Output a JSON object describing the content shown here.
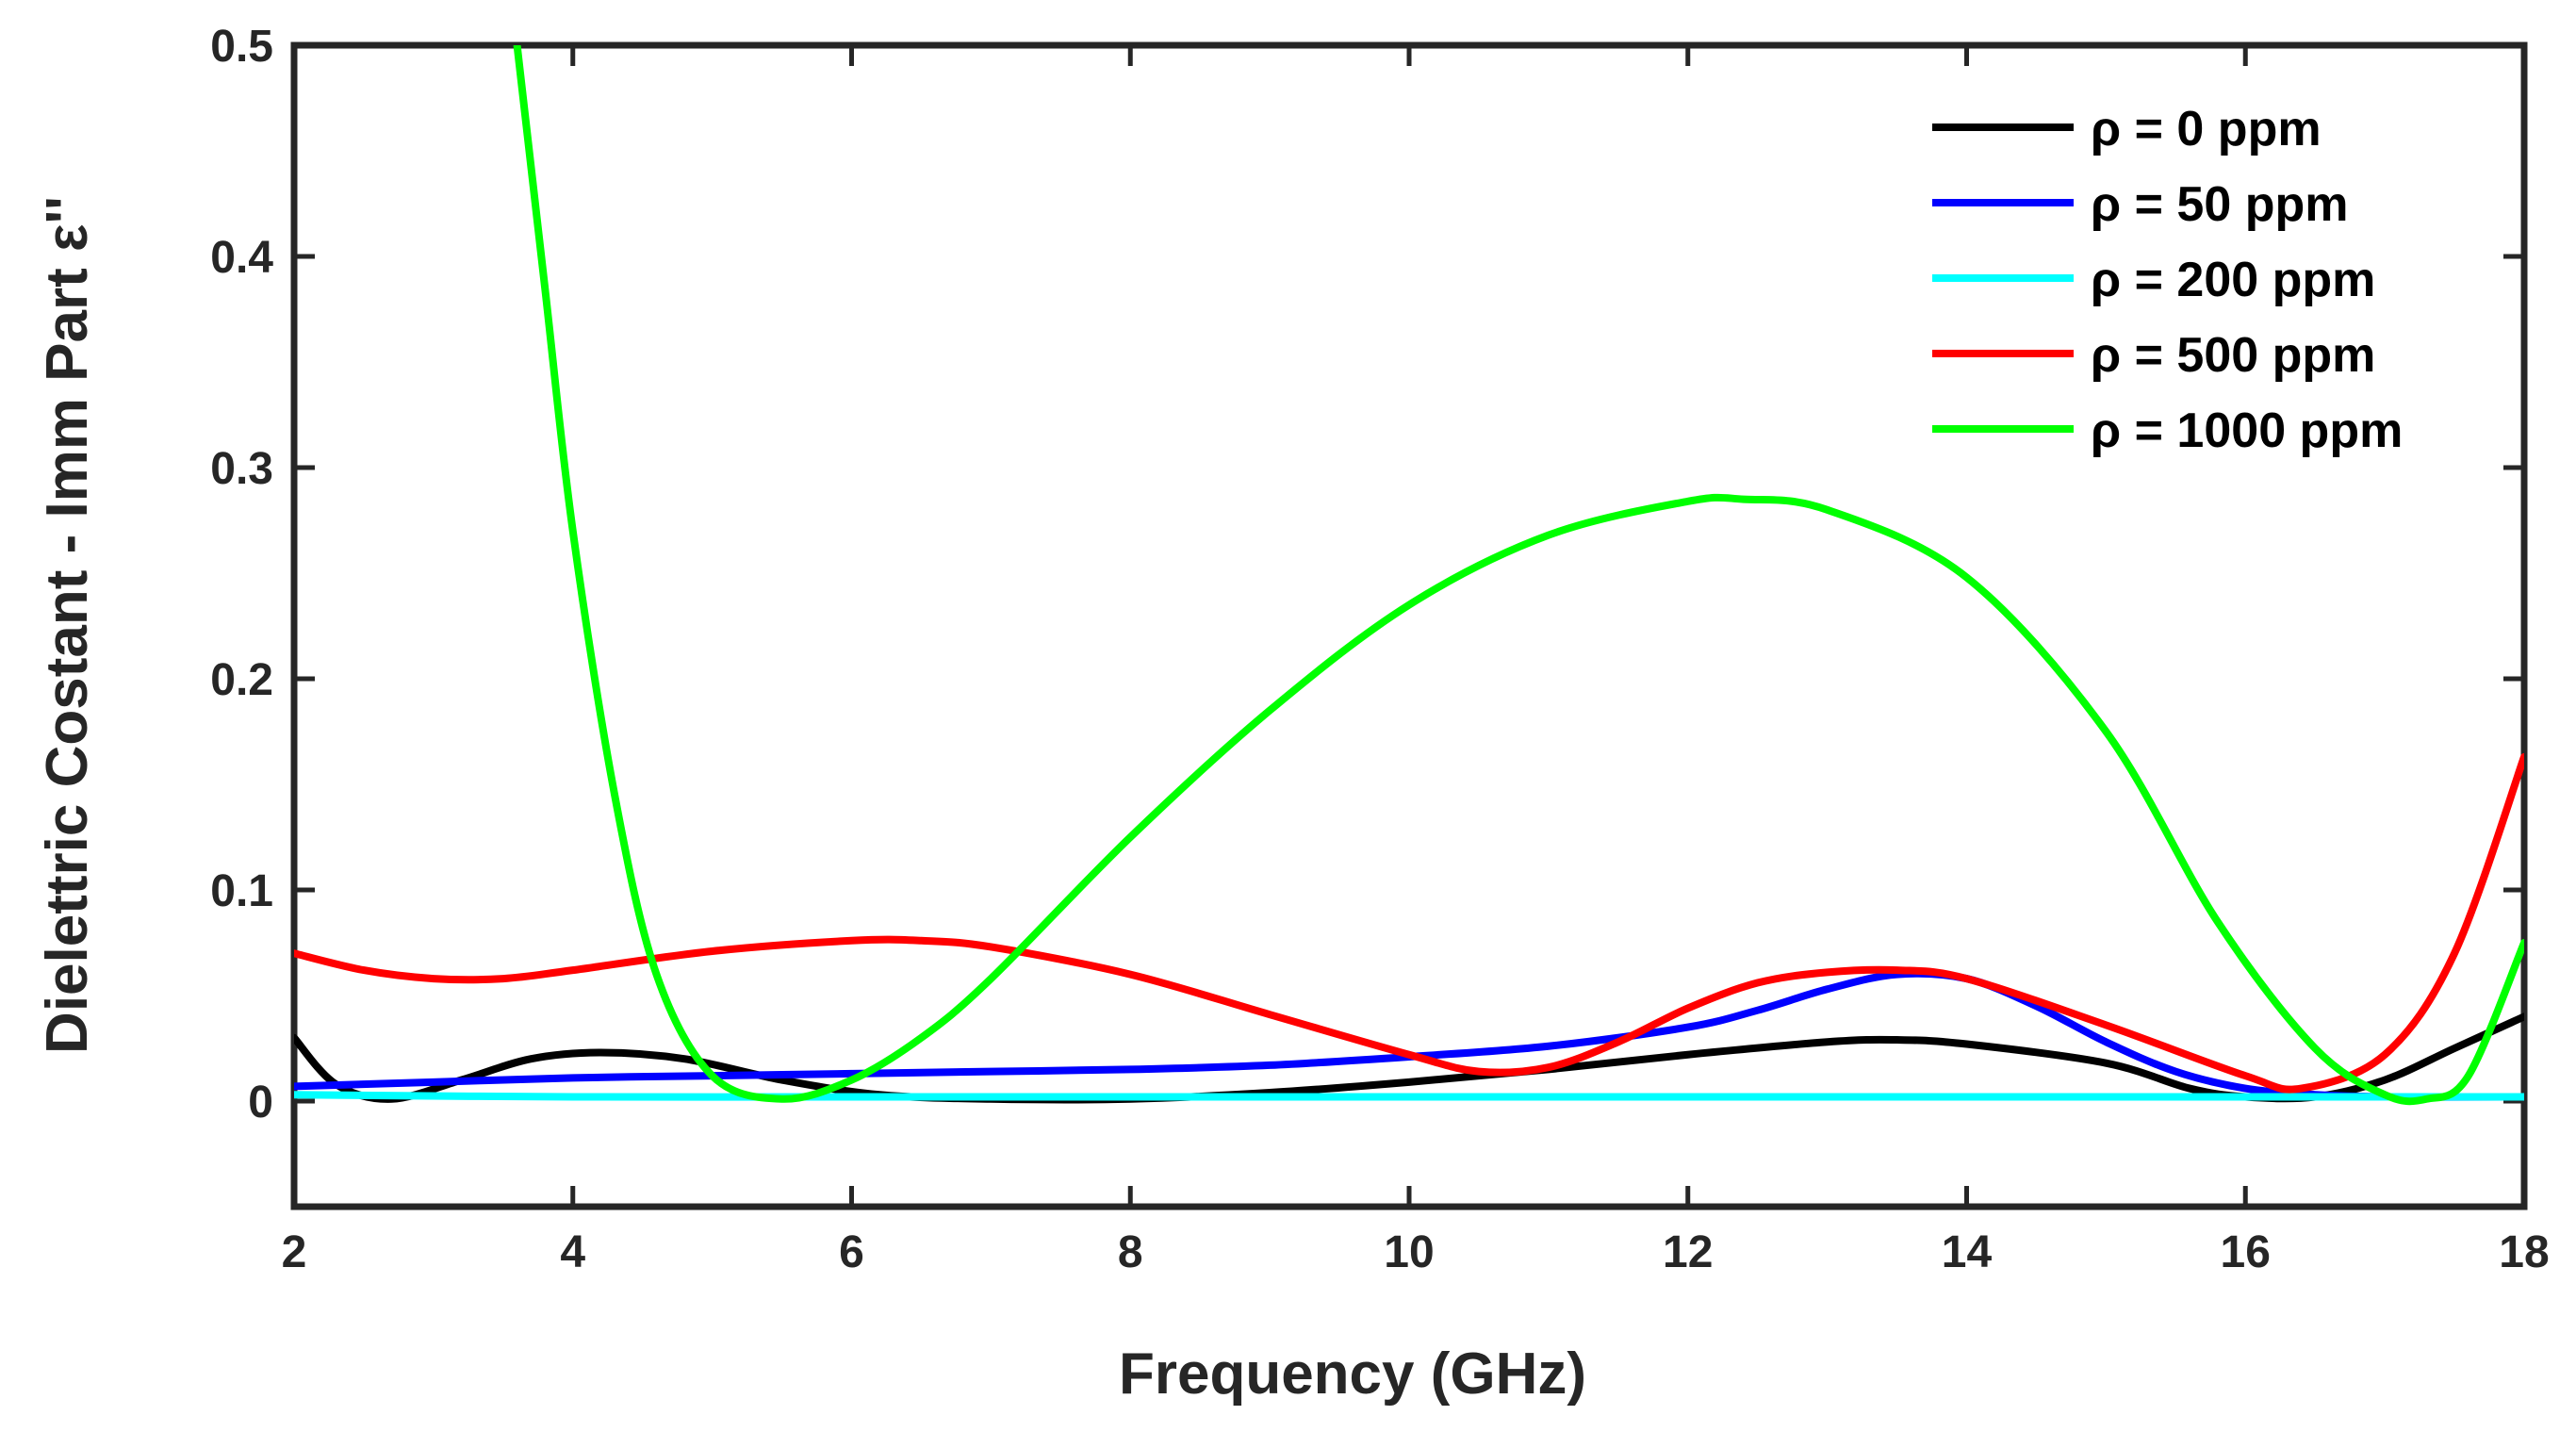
{
  "chart_data": {
    "type": "line",
    "title": "",
    "xlabel": "Frequency (GHz)",
    "ylabel": "Dielettric Costant - Imm Part ε''",
    "xlim": [
      2,
      18
    ],
    "ylim": [
      -0.05,
      0.5
    ],
    "xticks": [
      2,
      4,
      6,
      8,
      10,
      12,
      14,
      16,
      18
    ],
    "yticks": [
      0,
      0.1,
      0.2,
      0.3,
      0.4,
      0.5
    ],
    "ytick_labels": [
      "0",
      "0.1",
      "0.2",
      "0.3",
      "0.4",
      "0.5"
    ],
    "grid": false,
    "legend_position": "top-right",
    "series": [
      {
        "name": "ρ = 0 ppm",
        "color": "#000000",
        "x": [
          2,
          2.3,
          2.7,
          3.2,
          3.7,
          4.2,
          4.8,
          5.5,
          6.2,
          7,
          8,
          9,
          10,
          11,
          12,
          13,
          13.5,
          14,
          15,
          15.6,
          16,
          16.5,
          17,
          17.5,
          18
        ],
        "y": [
          0.03,
          0.008,
          0.001,
          0.01,
          0.02,
          0.023,
          0.02,
          0.01,
          0.003,
          0.001,
          0.001,
          0.004,
          0.009,
          0.015,
          0.022,
          0.028,
          0.029,
          0.027,
          0.018,
          0.006,
          0.002,
          0.002,
          0.01,
          0.025,
          0.04
        ]
      },
      {
        "name": "ρ = 50 ppm",
        "color": "#0000ff",
        "x": [
          2,
          3,
          4,
          5,
          6,
          7,
          8,
          9,
          10,
          11,
          12,
          12.5,
          13,
          13.5,
          14,
          14.5,
          15,
          15.5,
          16,
          16.5,
          17,
          18
        ],
        "y": [
          0.007,
          0.009,
          0.011,
          0.012,
          0.013,
          0.014,
          0.015,
          0.017,
          0.021,
          0.026,
          0.035,
          0.043,
          0.053,
          0.06,
          0.058,
          0.045,
          0.028,
          0.014,
          0.006,
          0.003,
          0.002,
          0.002
        ]
      },
      {
        "name": "ρ = 200 ppm",
        "color": "#00ffff",
        "x": [
          2,
          4,
          6,
          8,
          10,
          12,
          14,
          16,
          18
        ],
        "y": [
          0.003,
          0.002,
          0.002,
          0.002,
          0.002,
          0.002,
          0.002,
          0.002,
          0.002
        ]
      },
      {
        "name": "ρ = 500 ppm",
        "color": "#ff0000",
        "x": [
          2,
          2.5,
          3,
          3.5,
          4,
          5,
          6,
          6.5,
          7,
          8,
          9,
          10,
          10.5,
          11,
          11.5,
          12,
          12.5,
          13,
          13.5,
          14,
          15,
          16,
          16.4,
          17,
          17.5,
          18
        ],
        "y": [
          0.07,
          0.062,
          0.058,
          0.058,
          0.062,
          0.071,
          0.076,
          0.076,
          0.073,
          0.06,
          0.041,
          0.022,
          0.014,
          0.016,
          0.028,
          0.044,
          0.056,
          0.061,
          0.062,
          0.058,
          0.036,
          0.012,
          0.006,
          0.022,
          0.07,
          0.163
        ]
      },
      {
        "name": "ρ = 1000 ppm",
        "color": "#00ff00",
        "x": [
          3.6,
          3.8,
          4,
          4.3,
          4.6,
          5,
          5.5,
          6,
          6.5,
          7,
          8,
          9,
          10,
          11,
          12,
          12.4,
          13,
          14,
          15,
          15.8,
          16.5,
          17,
          17.3,
          17.6,
          18
        ],
        "y": [
          0.5,
          0.385,
          0.27,
          0.145,
          0.06,
          0.012,
          0.001,
          0.01,
          0.03,
          0.058,
          0.125,
          0.185,
          0.235,
          0.268,
          0.284,
          0.285,
          0.28,
          0.248,
          0.175,
          0.085,
          0.025,
          0.003,
          0.001,
          0.012,
          0.075
        ]
      }
    ]
  }
}
